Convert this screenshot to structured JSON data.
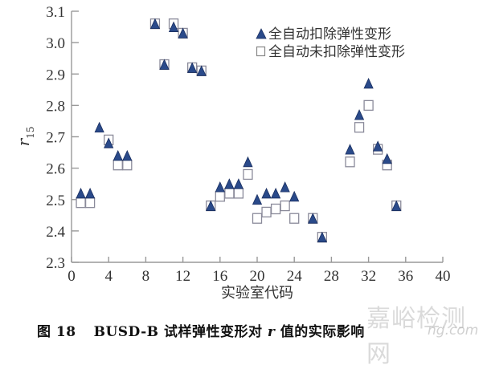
{
  "chart_data": {
    "type": "scatter",
    "title": "",
    "xlabel": "实验室代码",
    "ylabel": "r15",
    "ylabel_main": "r",
    "ylabel_sub": "15",
    "xlim": [
      0,
      40
    ],
    "ylim": [
      2.3,
      3.1
    ],
    "xticks": [
      0,
      4,
      8,
      12,
      16,
      20,
      24,
      28,
      32,
      36,
      40
    ],
    "yticks": [
      2.3,
      2.4,
      2.5,
      2.6,
      2.7,
      2.8,
      2.9,
      3.0,
      3.1
    ],
    "ytick_labels": [
      "2.3",
      "2.4",
      "2.5",
      "2.6",
      "2.7",
      "2.8",
      "2.9",
      "3.0",
      "3.1"
    ],
    "grid": false,
    "legend_position": "upper right",
    "series": [
      {
        "name": "全自动扣除弹性变形",
        "marker": "filled-triangle",
        "color": "#2a4a8a",
        "x": [
          1,
          2,
          3,
          4,
          5,
          6,
          9,
          10,
          11,
          12,
          13,
          14,
          15,
          16,
          17,
          18,
          19,
          20,
          21,
          22,
          23,
          24,
          26,
          27,
          30,
          31,
          32,
          33,
          34,
          35
        ],
        "y": [
          2.52,
          2.52,
          2.73,
          2.68,
          2.64,
          2.64,
          3.06,
          2.93,
          3.05,
          3.03,
          2.92,
          2.91,
          2.48,
          2.54,
          2.55,
          2.55,
          2.62,
          2.5,
          2.52,
          2.52,
          2.54,
          2.51,
          2.44,
          2.38,
          2.66,
          2.77,
          2.87,
          2.67,
          2.63,
          2.48
        ]
      },
      {
        "name": "全自动未扣除弹性变形",
        "marker": "hollow-square",
        "color": "#888888",
        "x": [
          1,
          2,
          4,
          5,
          6,
          9,
          10,
          11,
          12,
          13,
          14,
          15,
          16,
          17,
          18,
          19,
          20,
          21,
          22,
          23,
          24,
          26,
          27,
          30,
          31,
          32,
          33,
          34,
          35
        ],
        "y": [
          2.49,
          2.49,
          2.69,
          2.61,
          2.61,
          3.06,
          2.93,
          3.06,
          3.03,
          2.92,
          2.91,
          2.48,
          2.51,
          2.52,
          2.52,
          2.58,
          2.44,
          2.46,
          2.47,
          2.48,
          2.44,
          2.44,
          2.38,
          2.62,
          2.73,
          2.8,
          2.66,
          2.61,
          2.48
        ]
      }
    ]
  },
  "caption": {
    "figure_no": "图 18",
    "text_pre": "BUSD-B 试样弹性变形对 ",
    "text_var": "r",
    "text_post": " 值的实际影响"
  },
  "watermark": {
    "text": "嘉峪检测网",
    "url_fragment": "ng.com"
  }
}
